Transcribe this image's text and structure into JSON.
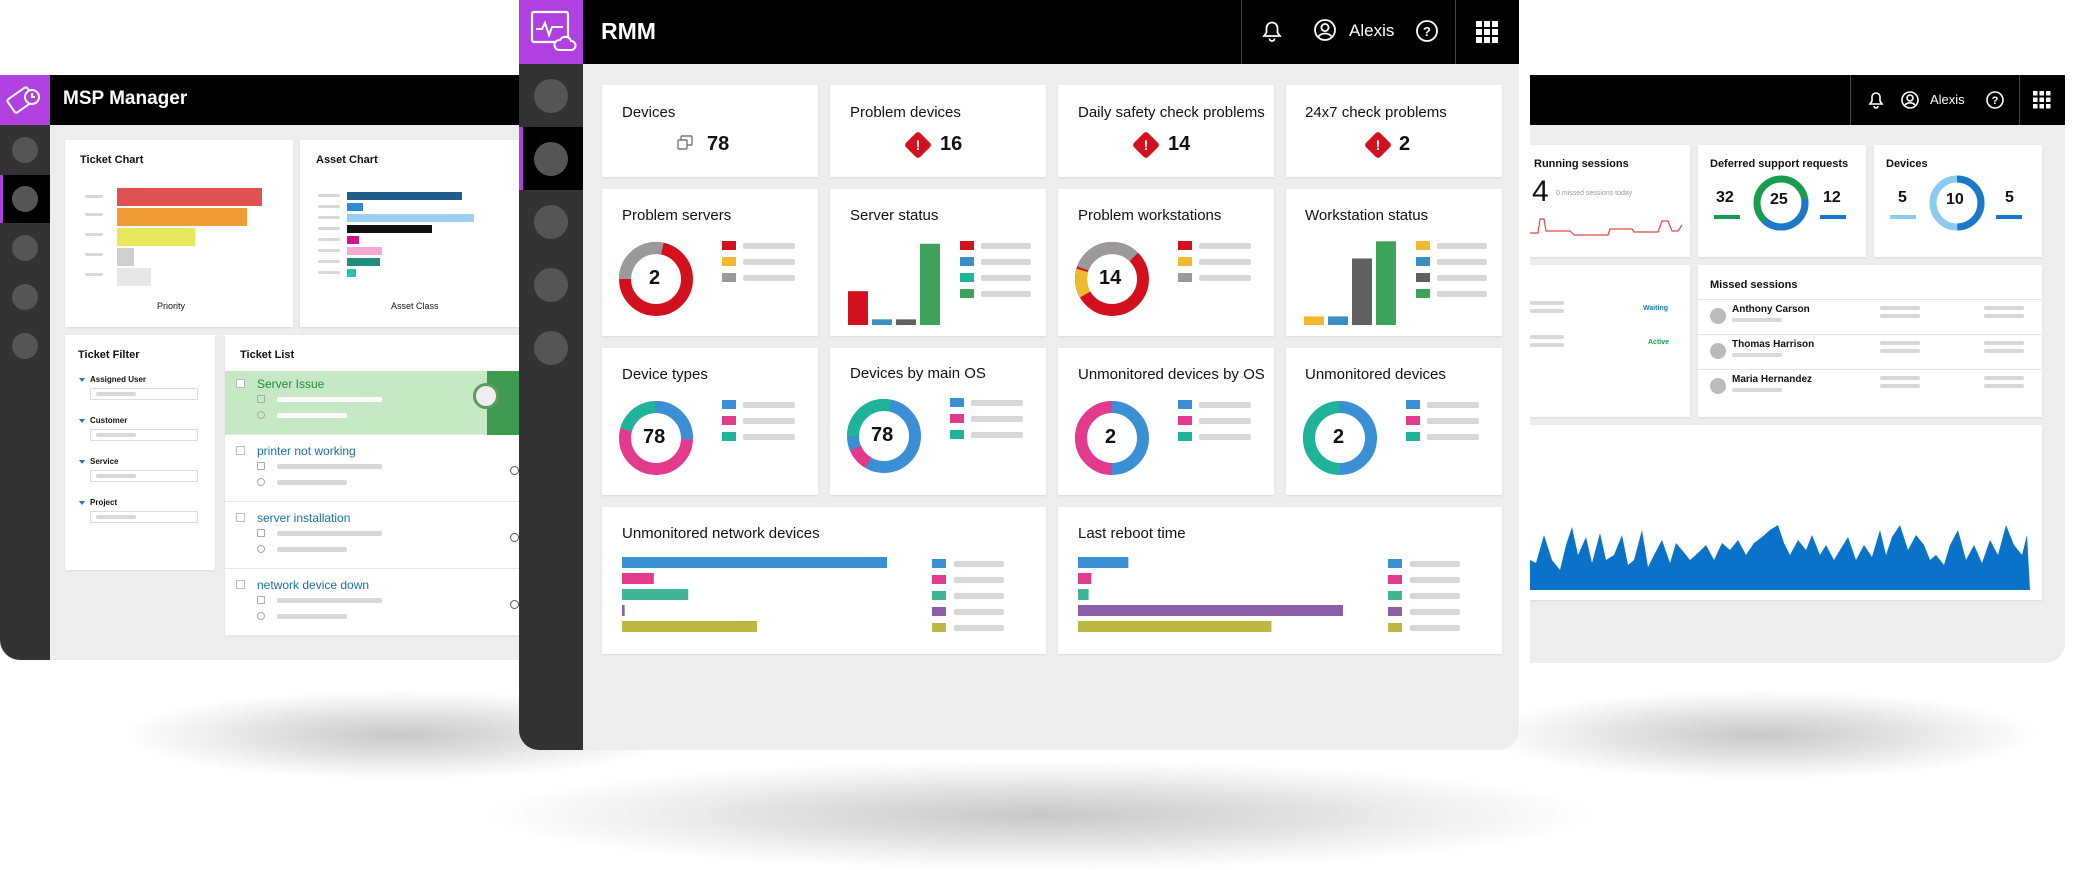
{
  "msp": {
    "title": "MSP Manager",
    "ticket_chart": {
      "title": "Ticket Chart",
      "xlabel": "Priority"
    },
    "asset_chart": {
      "title": "Asset Chart",
      "xlabel": "Asset Class"
    },
    "ticket_filter": {
      "title": "Ticket Filter",
      "filters": [
        "Assigned User",
        "Customer",
        "Service",
        "Project"
      ]
    },
    "ticket_list": {
      "title": "Ticket List",
      "tickets": [
        "Server Issue",
        "printer not working",
        "server installation",
        "network device down"
      ]
    }
  },
  "rmm": {
    "title": "RMM",
    "user": "Alexis",
    "cards": {
      "devices": {
        "title": "Devices",
        "value": "78"
      },
      "problem_devices": {
        "title": "Problem devices",
        "value": "16"
      },
      "daily_safety": {
        "title": "Daily safety check problems",
        "value": "14"
      },
      "check_24x7": {
        "title": "24x7 check problems",
        "value": "2"
      },
      "problem_servers": {
        "title": "Problem servers",
        "value": "2"
      },
      "server_status": {
        "title": "Server status"
      },
      "problem_workstations": {
        "title": "Problem workstations",
        "value": "14"
      },
      "workstation_status": {
        "title": "Workstation status"
      },
      "device_types": {
        "title": "Device types",
        "value": "78"
      },
      "devices_by_os": {
        "title": "Devices by main OS",
        "value": "78"
      },
      "unmonitored_by_os": {
        "title": "Unmonitored devices by OS",
        "value": "2"
      },
      "unmonitored_devices": {
        "title": "Unmonitored devices",
        "value": "2"
      },
      "unmonitored_network": {
        "title": "Unmonitored network devices"
      },
      "last_reboot": {
        "title": "Last reboot time"
      }
    }
  },
  "remote": {
    "user": "Alexis",
    "running_sessions": {
      "title": "Running sessions",
      "value": "4",
      "note": "0 missed sessions today"
    },
    "deferred": {
      "title": "Deferred support requests",
      "left": "32",
      "center": "25",
      "right": "12"
    },
    "devices": {
      "title": "Devices",
      "left": "5",
      "center": "10",
      "right": "5"
    },
    "statuses": [
      "Waiting",
      "Active"
    ],
    "missed_sessions": {
      "title": "Missed sessions",
      "people": [
        "Anthony Carson",
        "Thomas Harrison",
        "Maria Hernandez"
      ]
    }
  },
  "colors": {
    "purple": "#b040e0",
    "red": "#d3111e",
    "blue": "#3b8fd4",
    "teal": "#1fb39a",
    "pink": "#e43a8e",
    "green": "#3da35a",
    "yellow": "#f0b92e"
  },
  "chart_data": [
    {
      "type": "bar",
      "title": "Server status",
      "values": [
        30,
        5,
        5,
        72
      ]
    },
    {
      "type": "bar",
      "title": "Workstation status",
      "values": [
        8,
        8,
        62,
        78
      ]
    },
    {
      "type": "bar",
      "title": "Unmonitored network devices",
      "values": [
        100,
        12,
        25,
        1,
        51
      ]
    },
    {
      "type": "bar",
      "title": "Last reboot time",
      "values": [
        19,
        5,
        4,
        100,
        73
      ]
    }
  ]
}
